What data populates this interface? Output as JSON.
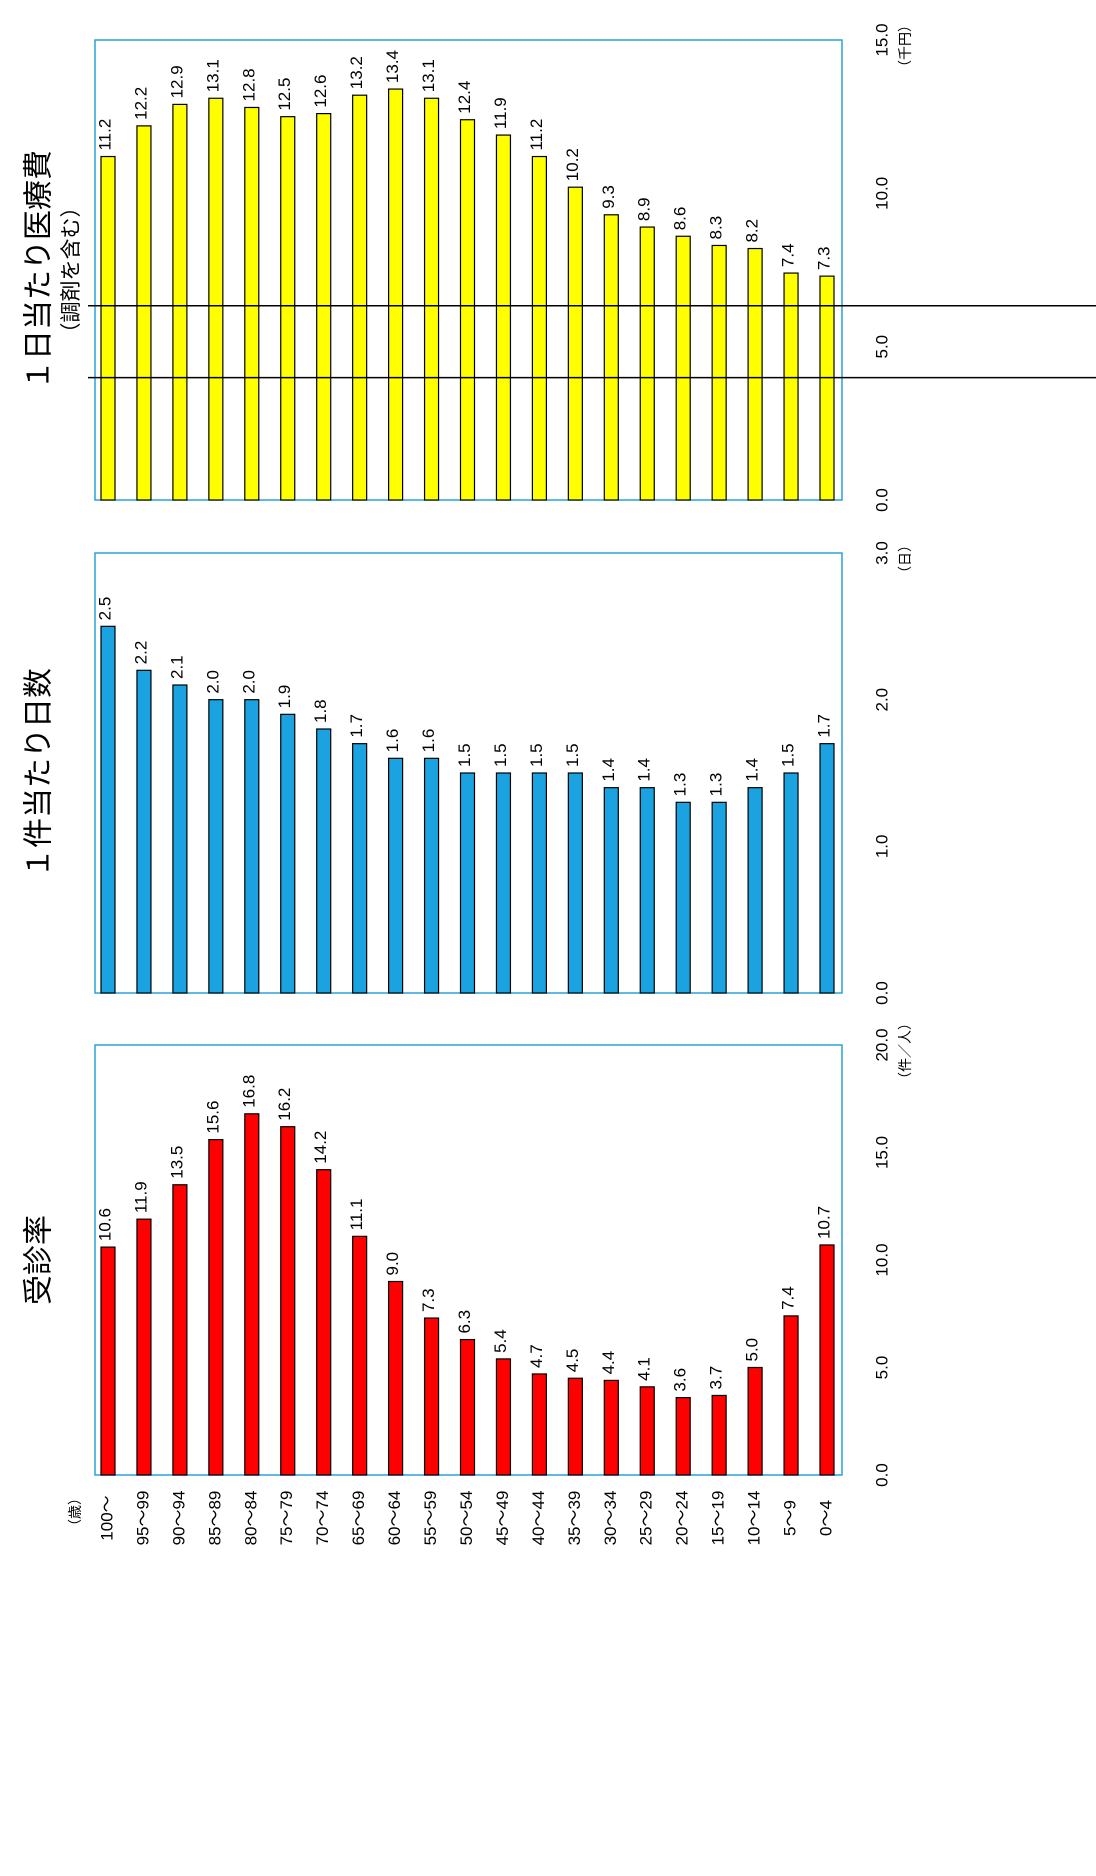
{
  "chart_data": {
    "type": "bar",
    "orientation": "horizontal",
    "unit_left": "（歳）",
    "categories": [
      "100～",
      "95～99",
      "90～94",
      "85～89",
      "80～84",
      "75～79",
      "70～74",
      "65～69",
      "60～64",
      "55～59",
      "50～54",
      "45～49",
      "40～44",
      "35～39",
      "30～34",
      "25～29",
      "20～24",
      "15～19",
      "10～14",
      "5～9",
      "0～4"
    ],
    "panels": [
      {
        "title": "受診率",
        "subtitle": "",
        "axis_unit": "（件／人）",
        "xlim": [
          0,
          20
        ],
        "ticks": [
          "0.0",
          "5.0",
          "10.0",
          "15.0",
          "20.0"
        ],
        "tick_values": [
          0,
          5,
          10,
          15,
          20
        ],
        "color": "#ff0000",
        "values": [
          10.6,
          11.9,
          13.5,
          15.6,
          16.8,
          16.2,
          14.2,
          11.1,
          9.0,
          7.3,
          6.3,
          5.4,
          4.7,
          4.5,
          4.4,
          4.1,
          3.6,
          3.7,
          5.0,
          7.4,
          10.7
        ],
        "labels": [
          "10.6",
          "11.9",
          "13.5",
          "15.6",
          "16.8",
          "16.2",
          "14.2",
          "11.1",
          "9.0",
          "7.3",
          "6.3",
          "5.4",
          "4.7",
          "4.5",
          "4.4",
          "4.1",
          "3.6",
          "3.7",
          "5.0",
          "7.4",
          "10.7"
        ]
      },
      {
        "title": "１件当たり日数",
        "subtitle": "",
        "axis_unit": "（日）",
        "xlim": [
          0,
          3
        ],
        "ticks": [
          "0.0",
          "1.0",
          "2.0",
          "3.0"
        ],
        "tick_values": [
          0,
          1,
          2,
          3
        ],
        "color": "#1aa3e0",
        "values": [
          2.5,
          2.2,
          2.1,
          2.0,
          2.0,
          1.9,
          1.8,
          1.7,
          1.6,
          1.6,
          1.5,
          1.5,
          1.5,
          1.5,
          1.4,
          1.4,
          1.3,
          1.3,
          1.4,
          1.5,
          1.7
        ],
        "labels": [
          "2.5",
          "2.2",
          "2.1",
          "2.0",
          "2.0",
          "1.9",
          "1.8",
          "1.7",
          "1.6",
          "1.6",
          "1.5",
          "1.5",
          "1.5",
          "1.5",
          "1.4",
          "1.4",
          "1.3",
          "1.3",
          "1.4",
          "1.5",
          "1.7"
        ]
      },
      {
        "title": "１日当たり医療費",
        "subtitle": "（調剤を含む）",
        "axis_unit": "（千円）",
        "xlim": [
          0,
          15
        ],
        "ticks": [
          "0.0",
          "5.0",
          "10.0",
          "15.0"
        ],
        "tick_values": [
          0,
          5,
          10,
          15
        ],
        "color": "#ffff00",
        "values": [
          11.2,
          12.2,
          12.9,
          13.1,
          12.8,
          12.5,
          12.6,
          13.2,
          13.4,
          13.1,
          12.4,
          11.9,
          11.2,
          10.2,
          9.3,
          8.9,
          8.6,
          8.3,
          8.2,
          7.4,
          7.3
        ],
        "labels": [
          "11.2",
          "12.2",
          "12.9",
          "13.1",
          "12.8",
          "12.5",
          "12.6",
          "13.2",
          "13.4",
          "13.1",
          "12.4",
          "11.9",
          "11.2",
          "10.2",
          "9.3",
          "8.9",
          "8.6",
          "8.3",
          "8.2",
          "7.4",
          "7.3"
        ]
      }
    ],
    "separators_after_index": [
      5,
      7
    ],
    "grid": false
  }
}
